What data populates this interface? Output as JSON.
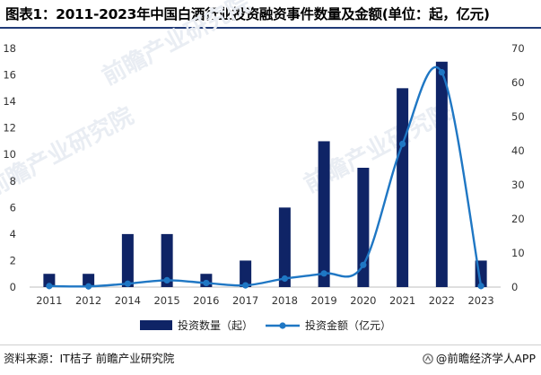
{
  "title": "图表1：2011-2023年中国白酒行业投资融资事件数量及金额(单位：起，亿元)",
  "source": "资料来源：IT桔子 前瞻产业研究院",
  "brand": "@前瞻经济学人APP",
  "watermark_text": [
    "前瞻产业研究院",
    "前瞻产业研究院",
    "前瞻产业研究院"
  ],
  "colors": {
    "bar": "#0f2466",
    "line": "#1f77c4",
    "title_rule": "#1f3a77"
  },
  "chart_data": {
    "type": "bar+line",
    "categories": [
      "2011",
      "2012",
      "2014",
      "2015",
      "2016",
      "2017",
      "2018",
      "2019",
      "2020",
      "2021",
      "2022",
      "2023"
    ],
    "series": [
      {
        "name": "投资数量（起）",
        "type": "bar",
        "axis": "left",
        "values": [
          1,
          1,
          4,
          4,
          1,
          2,
          6,
          11,
          9,
          15,
          17,
          2
        ]
      },
      {
        "name": "投资金额（亿元）",
        "type": "line",
        "axis": "right",
        "values": [
          0.3,
          0.2,
          1,
          2,
          1.2,
          0.5,
          2.5,
          4,
          6.5,
          42,
          63,
          0.3
        ]
      }
    ],
    "left_axis": {
      "min": 0,
      "max": 18,
      "ticks": [
        0,
        2,
        4,
        6,
        8,
        10,
        12,
        14,
        16,
        18
      ]
    },
    "right_axis": {
      "min": 0,
      "max": 70,
      "ticks": [
        0,
        10,
        20,
        30,
        40,
        50,
        60,
        70
      ]
    },
    "grid": false,
    "legend_position": "bottom"
  }
}
